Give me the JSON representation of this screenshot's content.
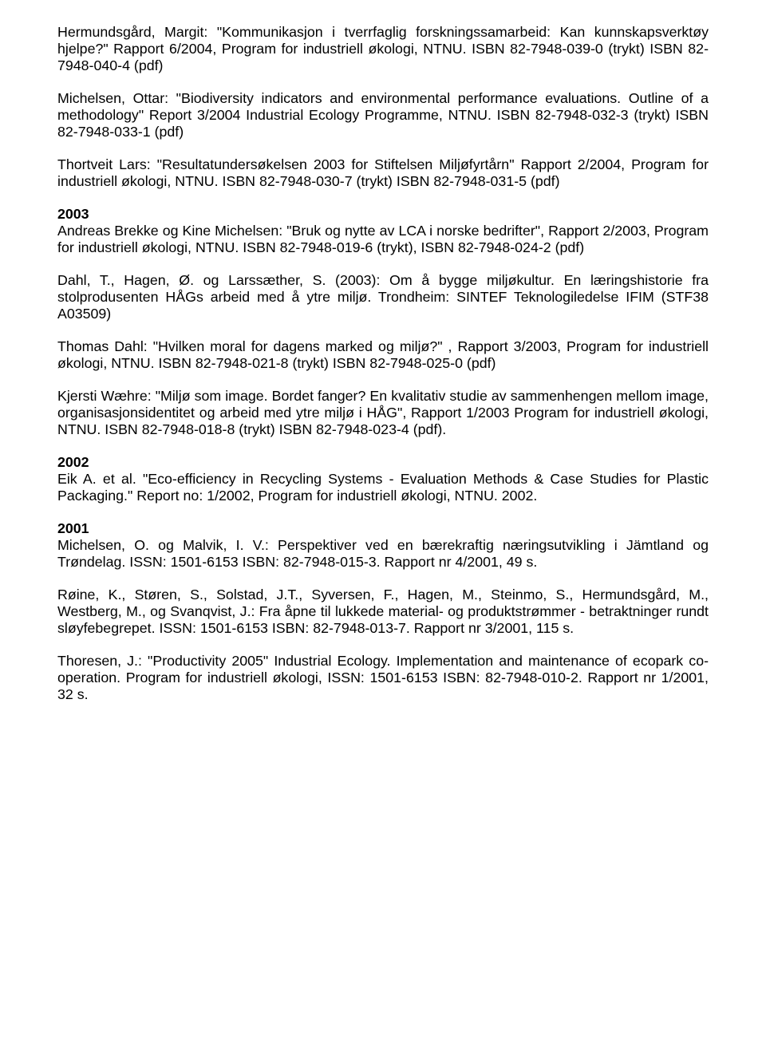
{
  "paragraphs": [
    {
      "html": "Hermundsgård, Margit: \"Kommunikasjon i tverrfaglig forskningssamarbeid: Kan kunnskapsverktøy hjelpe?\" Rapport 6/2004, Program for industriell økologi, NTNU. ISBN 82-7948-039-0 (trykt) ISBN 82-7948-040-4 (pdf)"
    },
    {
      "html": "Michelsen, Ottar: \"Biodiversity indicators and environmental performance evaluations. Outline of a methodology\" Report 3/2004 Industrial Ecology Programme, NTNU. ISBN 82-7948-032-3 (trykt) ISBN 82-7948-033-1 (pdf)"
    },
    {
      "html": "Thortveit Lars: \"Resultatundersøkelsen 2003 for Stiftelsen Miljøfyrtårn\" Rapport 2/2004, Program for industriell økologi, NTNU. ISBN 82-7948-030-7 (trykt) ISBN 82-7948-031-5 (pdf)"
    },
    {
      "html": "<span class=\"year\">2003</span><br>Andreas Brekke og Kine Michelsen: \"Bruk og nytte av LCA i norske bedrifter\", Rapport 2/2003, Program for industriell økologi, NTNU. ISBN 82-7948-019-6 (trykt), ISBN 82-7948-024-2 (pdf)"
    },
    {
      "html": "Dahl, T., Hagen, Ø. og Larssæther, S. (2003): Om å bygge miljøkultur. En læringshistorie fra stolprodusenten HÅGs arbeid med å ytre miljø. Trondheim: SINTEF Teknologiledelse IFIM (STF38 A03509)"
    },
    {
      "html": "Thomas Dahl: \"Hvilken moral for dagens marked og miljø?\" , Rapport 3/2003, Program for industriell økologi, NTNU. ISBN 82-7948-021-8 (trykt) ISBN 82-7948-025-0 (pdf)"
    },
    {
      "html": "Kjersti Wæhre: \"Miljø som image. Bordet fanger? En kvalitativ studie av sammenhengen mellom image, organisasjonsidentitet og arbeid med ytre miljø i HÅG\", Rapport 1/2003 Program for industriell økologi, NTNU. ISBN 82-7948-018-8 (trykt) ISBN 82-7948-023-4 (pdf)."
    },
    {
      "html": "<span class=\"year\">2002</span><br>Eik A. et al. \"Eco-efficiency in Recycling Systems - Evaluation Methods &amp; Case Studies for Plastic Packaging.\" Report no: 1/2002, Program for industriell økologi, NTNU. 2002."
    },
    {
      "html": "<span class=\"year\">2001</span><br>Michelsen, O. og Malvik, I. V.: Perspektiver ved en bærekraftig næringsutvikling i Jämtland og Trøndelag. ISSN: 1501-6153 ISBN: 82-7948-015-3. Rapport nr 4/2001, 49 s."
    },
    {
      "html": "Røine, K., Støren, S., Solstad, J.T., Syversen, F., Hagen, M., Steinmo, S., Hermundsgård, M., Westberg, M., og Svanqvist, J.: Fra åpne til lukkede material- og produktstrømmer - betraktninger rundt sløyfebegrepet. ISSN: 1501-6153 ISBN: 82-7948-013-7. Rapport nr 3/2001, 115 s."
    },
    {
      "html": "Thoresen, J.: \"Productivity 2005\" Industrial Ecology. Implementation and maintenance of ecopark co-operation. Program for industriell økologi, ISSN: 1501-6153 ISBN: 82-7948-010-2. Rapport nr 1/2001, 32 s."
    }
  ]
}
